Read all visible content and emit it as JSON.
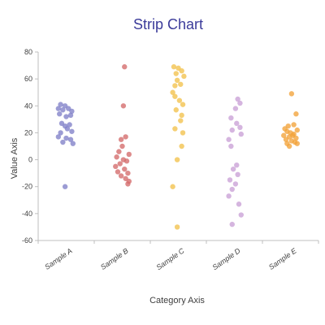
{
  "chart_data": {
    "type": "scatter",
    "title": "Strip Chart",
    "xlabel": "Category Axis",
    "ylabel": "Value Axis",
    "ylim": [
      -60,
      80
    ],
    "yticks": [
      -60,
      -40,
      -20,
      0,
      20,
      40,
      60,
      80
    ],
    "grid": false,
    "legend": "none",
    "categories": [
      "Sample A",
      "Sample B",
      "Sample C",
      "Sample D",
      "Sample E"
    ],
    "series": [
      {
        "color": "#8080c8",
        "points": [
          {
            "dx": -0.14,
            "y": 38
          },
          {
            "dx": -0.1,
            "y": 41
          },
          {
            "dx": -0.06,
            "y": 37
          },
          {
            "dx": -0.02,
            "y": 40
          },
          {
            "dx": 0.04,
            "y": 38
          },
          {
            "dx": 0.1,
            "y": 36
          },
          {
            "dx": -0.12,
            "y": 34
          },
          {
            "dx": 0.0,
            "y": 32
          },
          {
            "dx": 0.08,
            "y": 33
          },
          {
            "dx": -0.08,
            "y": 27
          },
          {
            "dx": 0.06,
            "y": 26
          },
          {
            "dx": -0.02,
            "y": 25
          },
          {
            "dx": 0.02,
            "y": 23
          },
          {
            "dx": -0.1,
            "y": 20
          },
          {
            "dx": 0.1,
            "y": 21
          },
          {
            "dx": -0.14,
            "y": 17
          },
          {
            "dx": 0.0,
            "y": 16
          },
          {
            "dx": 0.08,
            "y": 15
          },
          {
            "dx": -0.06,
            "y": 13
          },
          {
            "dx": 0.12,
            "y": 12
          },
          {
            "dx": -0.02,
            "y": -20
          }
        ]
      },
      {
        "color": "#d46a6a",
        "points": [
          {
            "dx": 0.04,
            "y": 69
          },
          {
            "dx": 0.02,
            "y": 40
          },
          {
            "dx": 0.06,
            "y": 17
          },
          {
            "dx": -0.02,
            "y": 15
          },
          {
            "dx": 0.0,
            "y": 10
          },
          {
            "dx": -0.06,
            "y": 6
          },
          {
            "dx": 0.12,
            "y": 4
          },
          {
            "dx": -0.1,
            "y": 2
          },
          {
            "dx": 0.02,
            "y": 0
          },
          {
            "dx": 0.08,
            "y": -1
          },
          {
            "dx": -0.04,
            "y": -3
          },
          {
            "dx": -0.12,
            "y": -5
          },
          {
            "dx": 0.04,
            "y": -7
          },
          {
            "dx": -0.08,
            "y": -9
          },
          {
            "dx": 0.1,
            "y": -10
          },
          {
            "dx": -0.02,
            "y": -12
          },
          {
            "dx": 0.06,
            "y": -14
          },
          {
            "dx": 0.12,
            "y": -16
          },
          {
            "dx": 0.1,
            "y": -18
          }
        ]
      },
      {
        "color": "#f2c24b",
        "points": [
          {
            "dx": -0.08,
            "y": 69
          },
          {
            "dx": 0.0,
            "y": 68
          },
          {
            "dx": 0.06,
            "y": 66
          },
          {
            "dx": -0.04,
            "y": 64
          },
          {
            "dx": 0.1,
            "y": 62
          },
          {
            "dx": -0.02,
            "y": 59
          },
          {
            "dx": 0.04,
            "y": 56
          },
          {
            "dx": -0.06,
            "y": 55
          },
          {
            "dx": -0.1,
            "y": 50
          },
          {
            "dx": -0.06,
            "y": 47
          },
          {
            "dx": 0.02,
            "y": 44
          },
          {
            "dx": 0.08,
            "y": 41
          },
          {
            "dx": -0.04,
            "y": 37
          },
          {
            "dx": 0.06,
            "y": 33
          },
          {
            "dx": 0.04,
            "y": 29
          },
          {
            "dx": -0.06,
            "y": 23
          },
          {
            "dx": 0.08,
            "y": 20
          },
          {
            "dx": 0.06,
            "y": 10
          },
          {
            "dx": -0.02,
            "y": 0
          },
          {
            "dx": -0.1,
            "y": -20
          },
          {
            "dx": -0.02,
            "y": -50
          }
        ]
      },
      {
        "color": "#c9a0d6",
        "points": [
          {
            "dx": 0.06,
            "y": 45
          },
          {
            "dx": 0.1,
            "y": 42
          },
          {
            "dx": 0.02,
            "y": 38
          },
          {
            "dx": -0.06,
            "y": 31
          },
          {
            "dx": 0.04,
            "y": 27
          },
          {
            "dx": 0.1,
            "y": 24
          },
          {
            "dx": -0.04,
            "y": 22
          },
          {
            "dx": 0.12,
            "y": 19
          },
          {
            "dx": -0.1,
            "y": 15
          },
          {
            "dx": -0.06,
            "y": 10
          },
          {
            "dx": 0.04,
            "y": -4
          },
          {
            "dx": -0.02,
            "y": -7
          },
          {
            "dx": 0.06,
            "y": -11
          },
          {
            "dx": -0.08,
            "y": -15
          },
          {
            "dx": 0.02,
            "y": -18
          },
          {
            "dx": -0.04,
            "y": -22
          },
          {
            "dx": -0.1,
            "y": -27
          },
          {
            "dx": 0.08,
            "y": -33
          },
          {
            "dx": 0.12,
            "y": -41
          },
          {
            "dx": -0.04,
            "y": -48
          }
        ]
      },
      {
        "color": "#f2a33a",
        "points": [
          {
            "dx": 0.02,
            "y": 49
          },
          {
            "dx": 0.1,
            "y": 34
          },
          {
            "dx": -0.04,
            "y": 25
          },
          {
            "dx": 0.06,
            "y": 26
          },
          {
            "dx": -0.1,
            "y": 23
          },
          {
            "dx": 0.12,
            "y": 22
          },
          {
            "dx": -0.06,
            "y": 21
          },
          {
            "dx": 0.0,
            "y": 20
          },
          {
            "dx": 0.06,
            "y": 19
          },
          {
            "dx": -0.12,
            "y": 18
          },
          {
            "dx": 0.04,
            "y": 18
          },
          {
            "dx": -0.02,
            "y": 17
          },
          {
            "dx": 0.1,
            "y": 16
          },
          {
            "dx": -0.08,
            "y": 15
          },
          {
            "dx": 0.02,
            "y": 14
          },
          {
            "dx": 0.08,
            "y": 13
          },
          {
            "dx": -0.06,
            "y": 12
          },
          {
            "dx": 0.12,
            "y": 12
          },
          {
            "dx": -0.02,
            "y": 10
          }
        ]
      }
    ]
  }
}
